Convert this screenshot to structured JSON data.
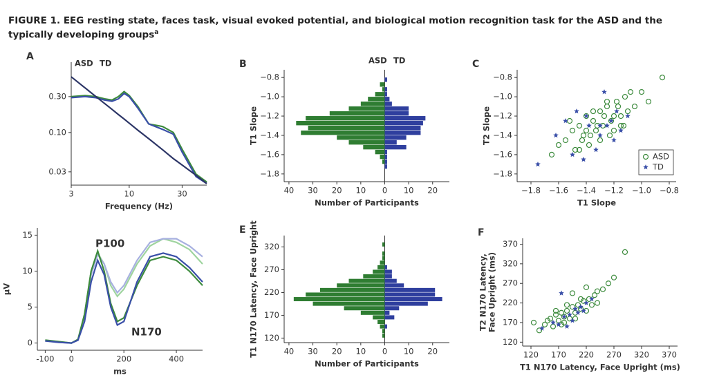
{
  "figure": {
    "title": "FIGURE 1. EEG resting state, faces task, visual evoked potential, and biological motion recognition task for the ASD and the typically developing groups",
    "note": "a"
  },
  "chart_data": [
    {
      "type": "line",
      "panel": "A",
      "xlabel": "Frequency (Hz)",
      "xlog": true,
      "ylog": true,
      "legend": "top",
      "x": [
        3,
        4,
        5,
        6,
        7,
        8,
        9,
        10,
        12,
        15,
        20,
        25,
        30,
        40,
        50
      ],
      "series": [
        {
          "name": "ASD",
          "color": "#3d8b3d",
          "values": [
            0.3,
            0.31,
            0.3,
            0.28,
            0.27,
            0.3,
            0.35,
            0.31,
            0.22,
            0.13,
            0.12,
            0.1,
            0.06,
            0.028,
            0.022
          ]
        },
        {
          "name": "TD",
          "color": "#3a4fa8",
          "values": [
            0.29,
            0.3,
            0.29,
            0.27,
            0.26,
            0.28,
            0.33,
            0.3,
            0.21,
            0.13,
            0.11,
            0.095,
            0.055,
            0.026,
            0.021
          ]
        },
        {
          "color": "#2c3566",
          "values": [
            0.55,
            0.392,
            0.301,
            0.243,
            0.203,
            0.173,
            0.151,
            0.133,
            0.107,
            0.083,
            0.059,
            0.045,
            0.037,
            0.027,
            0.021
          ]
        }
      ],
      "xlim": [
        3,
        50
      ],
      "xticks": [
        3,
        10,
        30
      ],
      "ylim": [
        0.02,
        0.86
      ],
      "yticks": [
        0.03,
        {
          "value": 0.1,
          "label": "0.10"
        },
        {
          "value": 0.3,
          "label": "0.30"
        }
      ]
    },
    {
      "type": "histogram",
      "panel": "B",
      "ylabel": "T1 Slope",
      "xlabel": "Number of Participants",
      "legend": "top",
      "bins": [
        -1.8,
        -1.75,
        -1.7,
        -1.65,
        -1.6,
        -1.55,
        -1.5,
        -1.45,
        -1.4,
        -1.35,
        -1.3,
        -1.25,
        -1.2,
        -1.15,
        -1.1,
        -1.05,
        -1.0,
        -0.95,
        -0.9,
        -0.85,
        -0.8
      ],
      "series": [
        {
          "name": "ASD",
          "color": "#2f7d32",
          "values": [
            0,
            0,
            -1,
            -2,
            -4,
            -9,
            -15,
            -20,
            -35,
            -32,
            -37,
            -33,
            -23,
            -15,
            -10,
            -7,
            -4,
            -1,
            -2,
            0
          ]
        },
        {
          "name": "TD",
          "color": "#2f3f9e",
          "values": [
            0,
            1,
            1,
            1,
            1,
            9,
            5,
            9,
            15,
            15,
            16,
            17,
            10,
            10,
            3,
            2,
            1,
            1,
            0,
            1
          ]
        }
      ],
      "xlim": [
        -42,
        27
      ],
      "xticks": [
        {
          "value": -40,
          "label": "40"
        },
        {
          "value": -30,
          "label": "30"
        },
        {
          "value": -20,
          "label": "20"
        },
        {
          "value": -10,
          "label": "10"
        },
        0,
        10,
        20
      ],
      "ylim": [
        -1.88,
        -0.72
      ],
      "yticks": [
        {
          "value": -1.8,
          "label": "−1.8"
        },
        {
          "value": -1.6,
          "label": "−1.6"
        },
        {
          "value": -1.4,
          "label": "−1.4"
        },
        {
          "value": -1.2,
          "label": "−1.2"
        },
        {
          "value": -1.0,
          "label": "−1.0"
        },
        {
          "value": -0.8,
          "label": "−0.8"
        }
      ]
    },
    {
      "type": "scatter",
      "panel": "C",
      "ylabel": "T2 Slope",
      "xlabel": "T1 Slope",
      "legend": "lower right",
      "series": [
        {
          "name": "ASD",
          "color": "#3d8b3d",
          "marker": "o",
          "x": [
            -1.6,
            -1.55,
            -1.5,
            -1.48,
            -1.45,
            -1.42,
            -1.4,
            -1.38,
            -1.35,
            -1.33,
            -1.3,
            -1.28,
            -1.25,
            -1.22,
            -1.2,
            -1.18,
            -1.15,
            -1.12,
            -1.1,
            -1.05,
            -1.0,
            -0.95,
            -0.85,
            -1.65,
            -1.52,
            -1.43,
            -1.37,
            -1.32,
            -1.27,
            -1.23,
            -1.17,
            -1.13,
            -1.08,
            -1.3,
            -1.45,
            -1.25,
            -1.35,
            -1.2,
            -1.4,
            -1.15
          ],
          "values": [
            -1.5,
            -1.45,
            -1.35,
            -1.55,
            -1.3,
            -1.4,
            -1.2,
            -1.5,
            -1.25,
            -1.35,
            -1.15,
            -1.3,
            -1.1,
            -1.25,
            -1.35,
            -1.05,
            -1.2,
            -1.0,
            -1.15,
            -1.1,
            -0.95,
            -1.05,
            -0.8,
            -1.6,
            -1.25,
            -1.45,
            -1.4,
            -1.3,
            -1.2,
            -1.4,
            -1.1,
            -1.3,
            -0.95,
            -1.45,
            -1.55,
            -1.05,
            -1.15,
            -1.2,
            -1.35,
            -1.3
          ]
        },
        {
          "name": "TD",
          "color": "#3a4fa8",
          "marker": "*",
          "x": [
            -1.75,
            -1.62,
            -1.55,
            -1.5,
            -1.47,
            -1.42,
            -1.38,
            -1.33,
            -1.3,
            -1.27,
            -1.22,
            -1.2,
            -1.18,
            -1.15,
            -1.1,
            -1.3,
            -1.4,
            -1.25
          ],
          "values": [
            -1.7,
            -1.4,
            -1.25,
            -1.6,
            -1.15,
            -1.65,
            -1.3,
            -1.55,
            -1.3,
            -0.95,
            -1.25,
            -1.45,
            -1.15,
            -1.35,
            -1.2,
            -1.4,
            -1.2,
            -1.3
          ]
        }
      ],
      "xlim": [
        -1.9,
        -0.75
      ],
      "xticks": [
        {
          "value": -1.8,
          "label": "−1.8"
        },
        {
          "value": -1.6,
          "label": "−1.6"
        },
        {
          "value": -1.4,
          "label": "−1.4"
        },
        {
          "value": -1.2,
          "label": "−1.2"
        },
        {
          "value": -1.0,
          "label": "−1.0"
        },
        {
          "value": -0.8,
          "label": "−0.8"
        }
      ],
      "ylim": [
        -1.88,
        -0.72
      ],
      "yticks": [
        {
          "value": -1.8,
          "label": "−1.8"
        },
        {
          "value": -1.6,
          "label": "−1.6"
        },
        {
          "value": -1.4,
          "label": "−1.4"
        },
        {
          "value": -1.2,
          "label": "−1.2"
        },
        {
          "value": -1.0,
          "label": "−1.0"
        },
        {
          "value": -0.8,
          "label": "−0.8"
        }
      ]
    },
    {
      "type": "line",
      "panel": "D",
      "ylabel": "µV",
      "xlabel": "ms",
      "annotations": [
        "P100",
        "N170"
      ],
      "x": [
        -100,
        -50,
        0,
        25,
        50,
        75,
        100,
        125,
        150,
        175,
        200,
        250,
        300,
        350,
        400,
        450,
        500
      ],
      "series": [
        {
          "color": "#9fd49f",
          "values": [
            0.3,
            0.2,
            0,
            0.5,
            4,
            10,
            12.5,
            11,
            8,
            6.5,
            7.5,
            11,
            13.5,
            14.5,
            14,
            13,
            11
          ]
        },
        {
          "color": "#a7b0e0",
          "values": [
            0.3,
            0.1,
            0,
            0.4,
            3.5,
            9.5,
            12.3,
            11,
            8.5,
            7,
            8,
            11.5,
            14,
            14.5,
            14.5,
            13.5,
            12
          ]
        },
        {
          "color": "#3d8b3d",
          "values": [
            0.4,
            0.2,
            0,
            0.5,
            4,
            10,
            12.8,
            10,
            5.5,
            3,
            3.5,
            8,
            11.5,
            12,
            11.5,
            10,
            8
          ]
        },
        {
          "color": "#3a4fa8",
          "values": [
            0.3,
            0.1,
            0,
            0.4,
            3,
            8.5,
            11.5,
            9.5,
            5,
            2.5,
            3,
            8.5,
            12,
            12.5,
            12,
            10.5,
            8.5
          ]
        }
      ],
      "xlim": [
        -130,
        500
      ],
      "xticks": [
        -100,
        0,
        200,
        400
      ],
      "ylim": [
        -1,
        16
      ],
      "yticks": [
        0,
        5,
        10,
        15
      ]
    },
    {
      "type": "histogram",
      "panel": "E",
      "ylabel": "T1 N170 Latency, Face Upright",
      "xlabel": "Number of Participants",
      "bins": [
        120,
        130,
        140,
        150,
        160,
        170,
        180,
        190,
        200,
        210,
        220,
        230,
        240,
        250,
        260,
        270,
        280,
        290,
        300,
        310,
        320,
        330,
        340
      ],
      "series": [
        {
          "color": "#2f7d32",
          "values": [
            -1,
            -1,
            -2,
            -3,
            -5,
            -10,
            -17,
            -30,
            -38,
            -33,
            -27,
            -20,
            -15,
            -9,
            -5,
            -3,
            -2,
            -1,
            -1,
            0,
            -1,
            0
          ]
        },
        {
          "color": "#2f3f9e",
          "values": [
            0,
            0,
            1,
            0,
            4,
            2,
            6,
            18,
            24,
            21,
            21,
            8,
            5,
            3,
            3,
            1,
            0,
            0,
            0,
            0,
            0,
            0
          ]
        }
      ],
      "xlim": [
        -42,
        27
      ],
      "xticks": [
        {
          "value": -40,
          "label": "40"
        },
        {
          "value": -30,
          "label": "30"
        },
        {
          "value": -20,
          "label": "20"
        },
        {
          "value": -10,
          "label": "10"
        },
        0,
        10,
        20
      ],
      "ylim": [
        110,
        345
      ],
      "yticks": [
        120,
        170,
        220,
        270,
        320
      ]
    },
    {
      "type": "scatter",
      "panel": "F",
      "ylabel": [
        "T2 N170 Latency,",
        "Face Upright (ms)"
      ],
      "xlabel": "T1 N170 Latency, Face Upright (ms)",
      "series": [
        {
          "color": "#3d8b3d",
          "marker": "o",
          "x": [
            125,
            135,
            145,
            150,
            155,
            160,
            165,
            170,
            175,
            180,
            185,
            190,
            195,
            200,
            205,
            210,
            215,
            220,
            225,
            230,
            235,
            240,
            250,
            260,
            270,
            290,
            175,
            185,
            200,
            210,
            195,
            220,
            240,
            165,
            180
          ],
          "values": [
            170,
            150,
            165,
            175,
            180,
            160,
            190,
            175,
            195,
            185,
            200,
            180,
            210,
            195,
            215,
            205,
            225,
            200,
            230,
            215,
            240,
            250,
            255,
            270,
            285,
            350,
            165,
            215,
            180,
            230,
            245,
            260,
            220,
            200,
            170
          ]
        },
        {
          "color": "#3a4fa8",
          "marker": "*",
          "x": [
            140,
            160,
            170,
            180,
            190,
            195,
            200,
            205,
            210,
            220,
            230,
            185,
            175,
            215
          ],
          "values": [
            155,
            170,
            165,
            185,
            190,
            175,
            205,
            195,
            210,
            220,
            230,
            160,
            245,
            200
          ]
        }
      ],
      "xlim": [
        105,
        385
      ],
      "xticks": [
        120,
        170,
        220,
        270,
        320,
        370
      ],
      "ylim": [
        110,
        385
      ],
      "yticks": [
        120,
        170,
        220,
        270,
        320,
        370
      ]
    }
  ]
}
